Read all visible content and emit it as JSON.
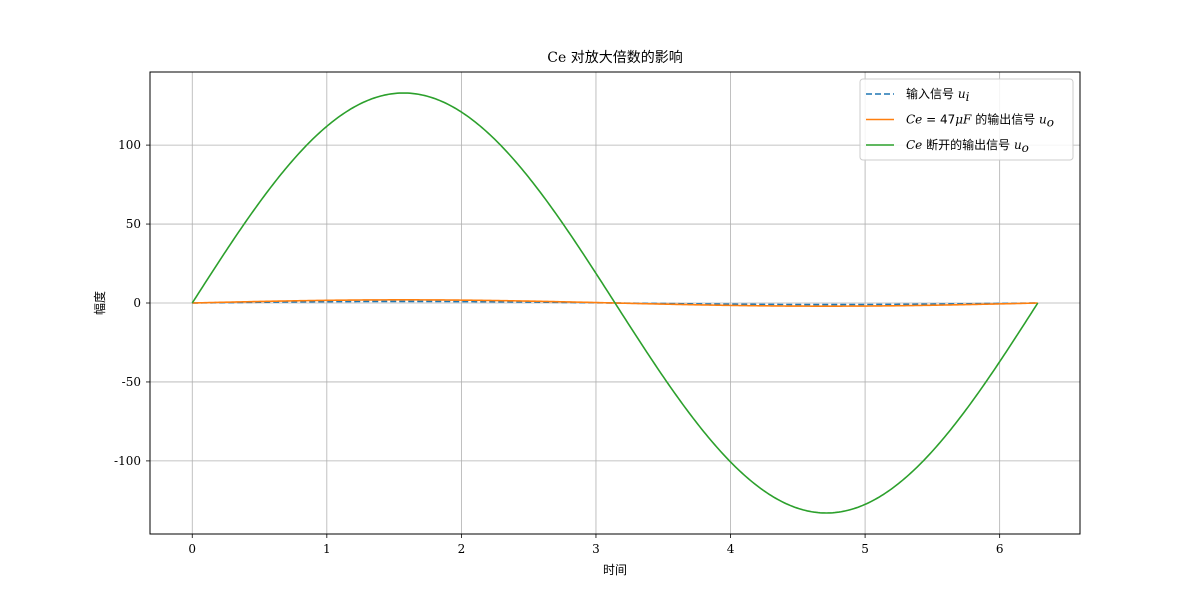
{
  "chart_data": {
    "type": "line",
    "title": "Ce 对放大倍数的影响",
    "xlabel": "时间",
    "ylabel": "幅度",
    "xlim": [
      -0.314,
      6.597
    ],
    "ylim": [
      -146.3,
      146.3
    ],
    "x_ticks": [
      0,
      1,
      2,
      3,
      4,
      5,
      6
    ],
    "y_ticks": [
      100,
      50,
      0,
      -50,
      -100
    ],
    "y_tick_labels": [
      "100",
      "50",
      "0",
      "-50",
      "-100"
    ],
    "grid": true,
    "legend_position": "top-right",
    "x_range": [
      0,
      6.2832
    ],
    "series": [
      {
        "name": "输入信号 u_i",
        "legend_parts": [
          [
            "输入信号 ",
            "plain"
          ],
          [
            "u",
            "italic"
          ],
          [
            "i",
            "sub"
          ]
        ],
        "function": "sine",
        "amplitude": 1,
        "color": "#1f77b4",
        "dash": "dashed"
      },
      {
        "name": "Ce = 47μF 的输出信号 u_o",
        "legend_parts": [
          [
            "Ce",
            "italic"
          ],
          [
            " = 47",
            "plain"
          ],
          [
            "μF",
            "italic"
          ],
          [
            " 的输出信号 ",
            "plain"
          ],
          [
            "u",
            "italic"
          ],
          [
            "o",
            "sub"
          ]
        ],
        "function": "sine",
        "amplitude": 2,
        "color": "#ff7f0e",
        "dash": "solid"
      },
      {
        "name": "Ce 断开的输出信号 u_o",
        "legend_parts": [
          [
            "Ce",
            "italic"
          ],
          [
            " 断开的输出信号 ",
            "plain"
          ],
          [
            "u",
            "italic"
          ],
          [
            "o",
            "sub"
          ]
        ],
        "function": "sine",
        "amplitude": 133,
        "color": "#2ca02c",
        "dash": "solid"
      }
    ]
  }
}
